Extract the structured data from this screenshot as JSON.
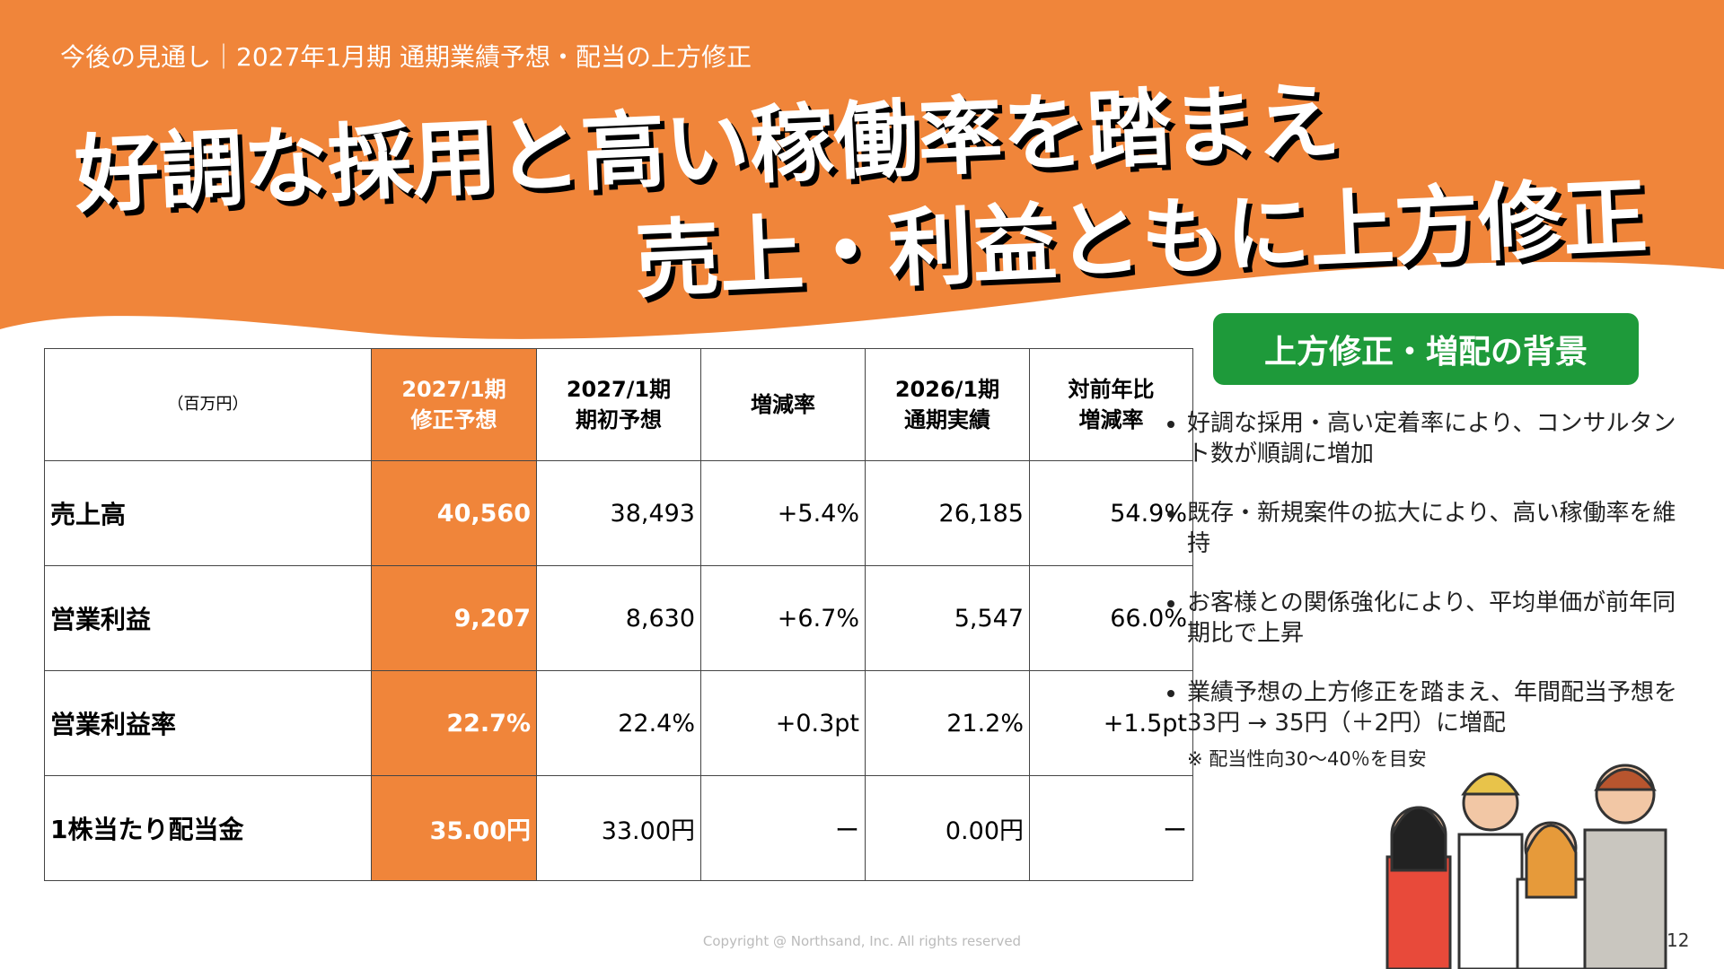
{
  "header": {
    "subtitle": "今後の見通し｜2027年1月期 通期業績予想・配当の上方修正",
    "title_lines": [
      "好調な採用と高い稼働率を踏まえ",
      "売上・利益ともに上方修正"
    ]
  },
  "table": {
    "unit": "（百万円）",
    "columns": [
      [
        "2027/1期",
        "修正予想"
      ],
      [
        "2027/1期",
        "期初予想"
      ],
      [
        "増減率"
      ],
      [
        "2026/1期",
        "通期実績"
      ],
      [
        "対前年比",
        "増減率"
      ]
    ],
    "rows": [
      [
        "売上高",
        "40,560",
        "38,493",
        "+5.4%",
        "26,185",
        "54.9%"
      ],
      [
        "営業利益",
        "9,207",
        "8,630",
        "+6.7%",
        "5,547",
        "66.0%"
      ],
      [
        "営業利益率",
        "22.7%",
        "22.4%",
        "+0.3pt",
        "21.2%",
        "+1.5pt"
      ],
      [
        "1株当たり配当金",
        "35.00円",
        "33.00円",
        "ー",
        "0.00円",
        "ー"
      ]
    ]
  },
  "side": {
    "title": "上方修正・増配の背景",
    "bullets": [
      "好調な採用・高い定着率により、コンサルタント数が順調に増加",
      "既存・新規案件の拡大により、高い稼働率を維持",
      "お客様との関係強化により、平均単価が前年同期比で上昇",
      "業績予想の上方修正を踏まえ、年間配当予想を33円 → 35円（＋2円）に増配"
    ],
    "note": "※ 配当性向30〜40％を目安"
  },
  "footer": {
    "copyright": "Copyright @ Northsand, Inc. All rights reserved",
    "page": "12"
  }
}
